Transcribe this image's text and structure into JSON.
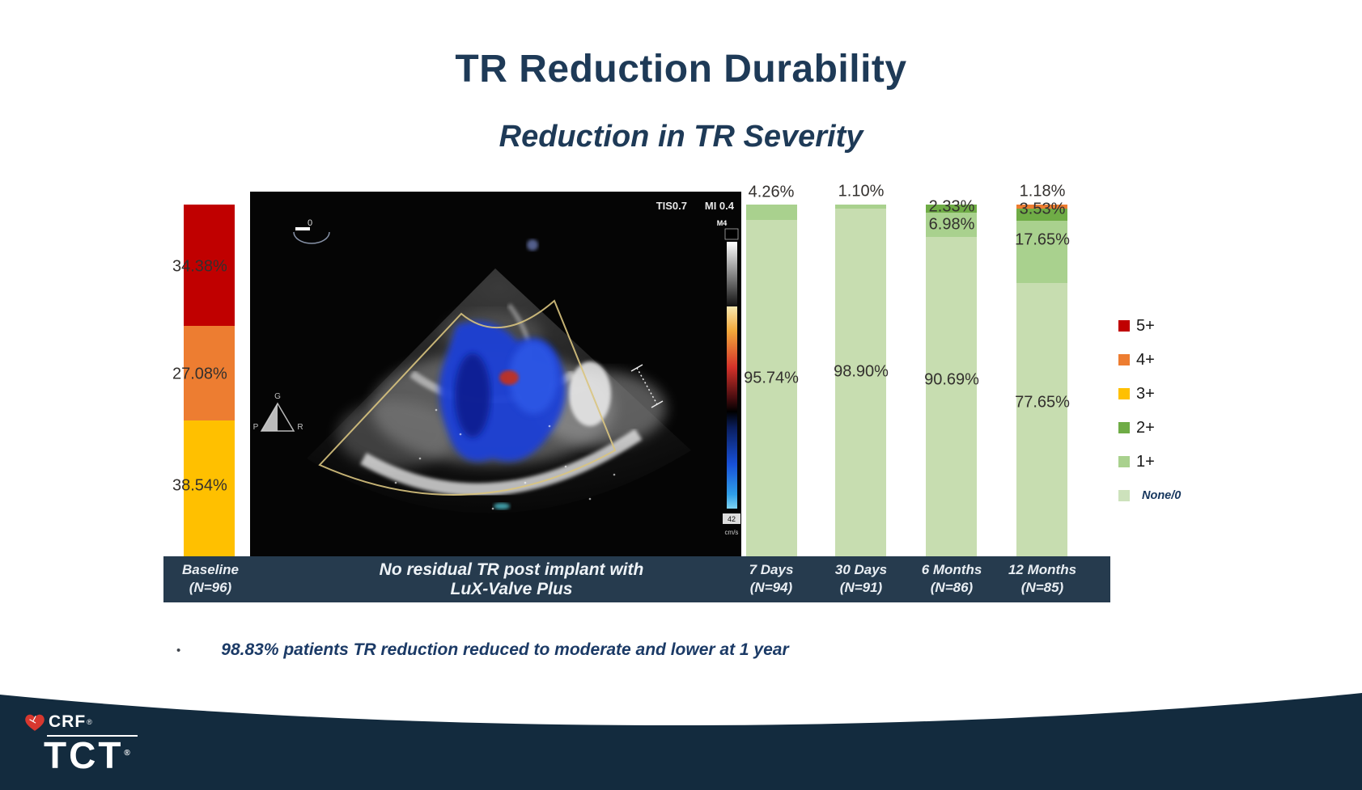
{
  "slide": {
    "title": "TR Reduction Durability",
    "subtitle": "Reduction in TR Severity",
    "bullet_marker": "•",
    "bullet_text": "98.83% patients TR reduction reduced to moderate and lower at 1 year",
    "echo_caption_line1": "No residual TR post implant with",
    "echo_caption_line2": "LuX-Valve Plus"
  },
  "chart_data": {
    "type": "bar",
    "stacked": true,
    "unit": "percent",
    "ylim": [
      0,
      100
    ],
    "grid": false,
    "legend_position": "right",
    "categories": [
      {
        "label": "Baseline",
        "n": "(N=96)"
      },
      {
        "label": "7 Days",
        "n": "(N=94)"
      },
      {
        "label": "30 Days",
        "n": "(N=91)"
      },
      {
        "label": "6 Months",
        "n": "(N=86)"
      },
      {
        "label": "12 Months",
        "n": "(N=85)"
      }
    ],
    "series": [
      {
        "name": "5+",
        "color": "#c00000",
        "values": [
          34.38,
          0,
          0,
          0,
          0
        ],
        "display": [
          "34.38%",
          "",
          "",
          "",
          ""
        ]
      },
      {
        "name": "4+",
        "color": "#ed7d31",
        "values": [
          27.08,
          0,
          0,
          0,
          1.18
        ],
        "display": [
          "27.08%",
          "",
          "",
          "",
          "1.18%"
        ]
      },
      {
        "name": "3+",
        "color": "#ffc000",
        "values": [
          38.54,
          0,
          0,
          0,
          0
        ],
        "display": [
          "38.54%",
          "",
          "",
          "",
          ""
        ]
      },
      {
        "name": "2+",
        "color": "#6fac46",
        "values": [
          0,
          0,
          0,
          2.33,
          3.53
        ],
        "display": [
          "",
          "",
          "",
          "2.33%",
          "3.53%"
        ]
      },
      {
        "name": "1+",
        "color": "#a9d18e",
        "values": [
          0,
          4.26,
          1.1,
          6.98,
          17.65
        ],
        "display": [
          "",
          "4.26%",
          "1.10%",
          "6.98%",
          "17.65%"
        ]
      },
      {
        "name": "None/0",
        "color": "#c7ddb0",
        "values": [
          0,
          95.74,
          98.9,
          90.69,
          77.65
        ],
        "display": [
          "",
          "95.74%",
          "98.90%",
          "90.69%",
          "77.65%"
        ]
      }
    ]
  },
  "legend": {
    "items": [
      {
        "label": "5+",
        "color": "#c00000"
      },
      {
        "label": "4+",
        "color": "#ed7d31"
      },
      {
        "label": "3+",
        "color": "#ffc000"
      },
      {
        "label": "2+",
        "color": "#6fac46"
      },
      {
        "label": "1+",
        "color": "#a9d18e"
      },
      {
        "label": "None/0",
        "color": "#cde2bc"
      }
    ]
  },
  "echo": {
    "tis": "TIS0.7",
    "mi": "MI 0.4",
    "marker_zero": "0",
    "orient": {
      "p": "P",
      "g": "G",
      "r": "R"
    },
    "scale_top": "M4",
    "scale_value": "42",
    "scale_unit": "cm/s"
  },
  "footer": {
    "org": "CRF",
    "brand": "TCT",
    "reg": "®"
  }
}
